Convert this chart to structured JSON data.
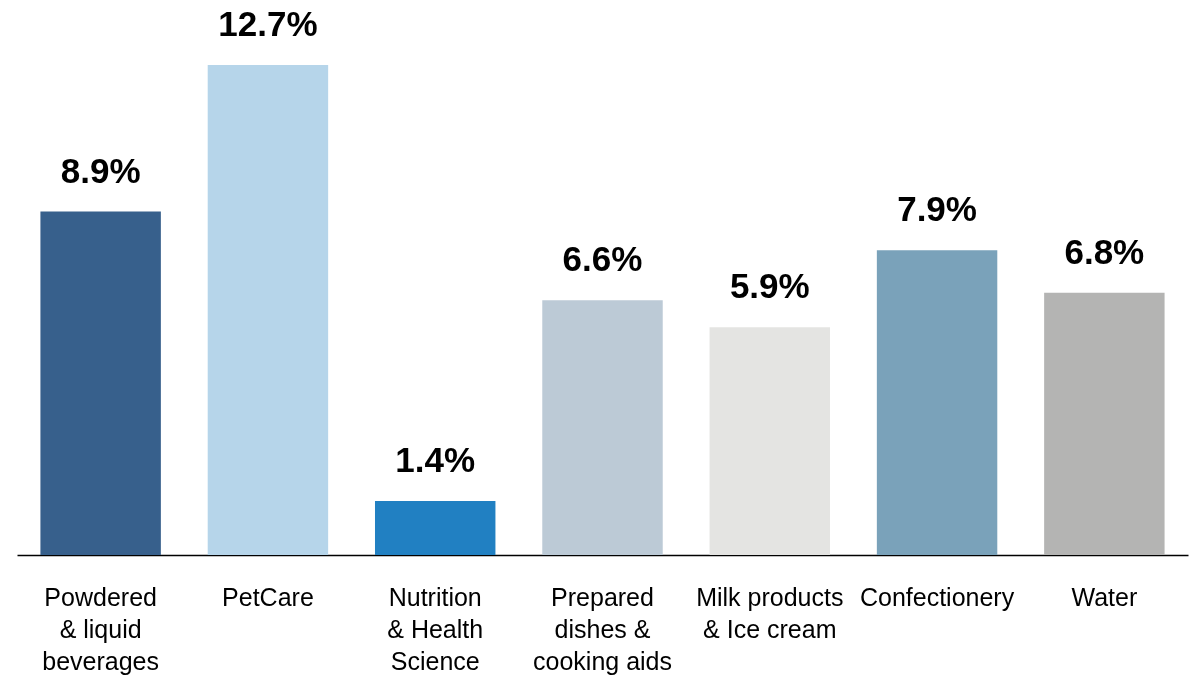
{
  "chart_data": {
    "type": "bar",
    "categories": [
      "Powdered & liquid beverages",
      "PetCare",
      "Nutrition & Health Science",
      "Prepared dishes & cooking aids",
      "Milk products & Ice cream",
      "Confectionery",
      "Water"
    ],
    "values": [
      8.9,
      12.7,
      1.4,
      6.6,
      5.9,
      7.9,
      6.8
    ],
    "colors": [
      "#37608c",
      "#b6d5ea",
      "#2180c2",
      "#bccad6",
      "#e4e4e2",
      "#7aa2ba",
      "#b4b4b3"
    ],
    "value_labels": [
      "8.9%",
      "12.7%",
      "1.4%",
      "6.6%",
      "5.9%",
      "7.9%",
      "6.8%"
    ]
  }
}
